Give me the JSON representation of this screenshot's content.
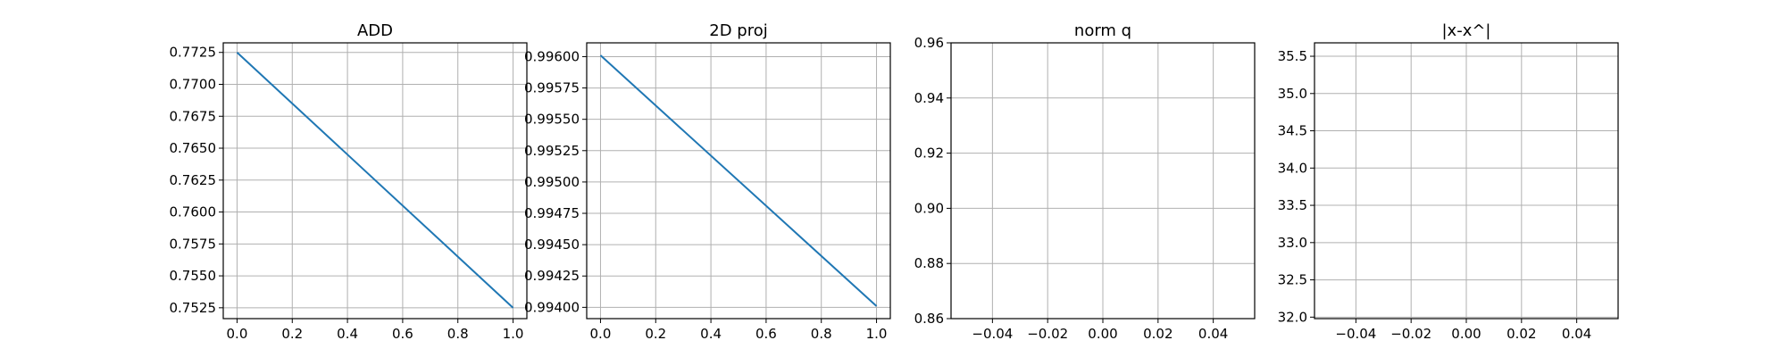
{
  "chart_data": [
    {
      "type": "line",
      "title": "ADD",
      "xlim": [
        -0.05,
        1.05
      ],
      "ylim": [
        0.75165,
        0.77325
      ],
      "xticks": [
        0.0,
        0.2,
        0.4,
        0.6,
        0.8,
        1.0
      ],
      "xtick_labels": [
        "0.0",
        "0.2",
        "0.4",
        "0.6",
        "0.8",
        "1.0"
      ],
      "yticks": [
        0.7525,
        0.755,
        0.7575,
        0.76,
        0.7625,
        0.765,
        0.7675,
        0.77,
        0.7725
      ],
      "ytick_labels": [
        "0.7525",
        "0.7550",
        "0.7575",
        "0.7600",
        "0.7625",
        "0.7650",
        "0.7675",
        "0.7700",
        "0.7725"
      ],
      "grid": true,
      "series": [
        {
          "x": [
            0.0,
            1.0
          ],
          "y": [
            0.7725,
            0.7525
          ],
          "color": "#1f77b4"
        }
      ]
    },
    {
      "type": "line",
      "title": "2D proj",
      "xlim": [
        -0.05,
        1.05
      ],
      "ylim": [
        0.99391,
        0.99611
      ],
      "xticks": [
        0.0,
        0.2,
        0.4,
        0.6,
        0.8,
        1.0
      ],
      "xtick_labels": [
        "0.0",
        "0.2",
        "0.4",
        "0.6",
        "0.8",
        "1.0"
      ],
      "yticks": [
        0.994,
        0.99425,
        0.9945,
        0.99475,
        0.995,
        0.99525,
        0.9955,
        0.99575,
        0.996
      ],
      "ytick_labels": [
        "0.99400",
        "0.99425",
        "0.99450",
        "0.99475",
        "0.99500",
        "0.99525",
        "0.99550",
        "0.99575",
        "0.99600"
      ],
      "grid": true,
      "series": [
        {
          "x": [
            0.0,
            1.0
          ],
          "y": [
            0.99601,
            0.99401
          ],
          "color": "#1f77b4"
        }
      ]
    },
    {
      "type": "line",
      "title": "norm q",
      "xlim": [
        -0.055,
        0.055
      ],
      "ylim": [
        0.86,
        0.96
      ],
      "xticks": [
        -0.04,
        -0.02,
        0.0,
        0.02,
        0.04
      ],
      "xtick_labels": [
        "−0.04",
        "−0.02",
        "0.00",
        "0.02",
        "0.04"
      ],
      "yticks": [
        0.86,
        0.88,
        0.9,
        0.92,
        0.94,
        0.96
      ],
      "ytick_labels": [
        "0.86",
        "0.88",
        "0.90",
        "0.92",
        "0.94",
        "0.96"
      ],
      "grid": true,
      "series": []
    },
    {
      "type": "line",
      "title": "|x-x^|",
      "xlim": [
        -0.055,
        0.055
      ],
      "ylim": [
        31.98,
        35.68
      ],
      "xticks": [
        -0.04,
        -0.02,
        0.0,
        0.02,
        0.04
      ],
      "xtick_labels": [
        "−0.04",
        "−0.02",
        "0.00",
        "0.02",
        "0.04"
      ],
      "yticks": [
        32.0,
        32.5,
        33.0,
        33.5,
        34.0,
        34.5,
        35.0,
        35.5
      ],
      "ytick_labels": [
        "32.0",
        "32.5",
        "33.0",
        "33.5",
        "34.0",
        "34.5",
        "35.0",
        "35.5"
      ],
      "grid": true,
      "series": []
    }
  ]
}
